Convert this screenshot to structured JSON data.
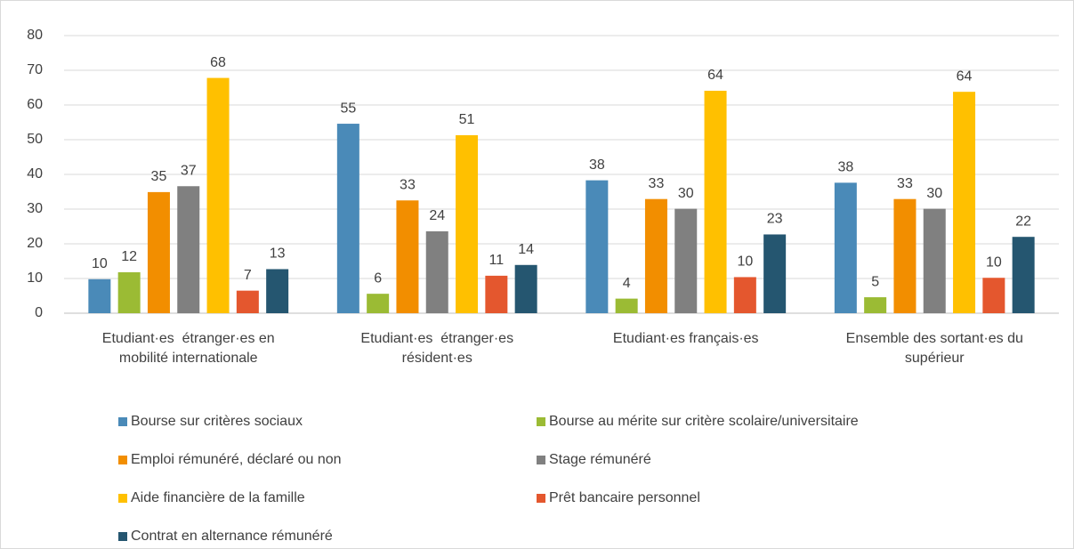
{
  "chart_data": {
    "type": "bar",
    "categories": [
      "Etudiant·es  étranger·es en mobilité internationale",
      "Etudiant·es  étranger·es résident·es",
      "Etudiant·es français·es",
      "Ensemble des sortant·es du supérieur"
    ],
    "series": [
      {
        "name": "Bourse sur critères sociaux",
        "color": "#4a8ab8",
        "values": [
          9.8,
          54.6,
          38.3,
          37.6
        ],
        "value_labels": [
          "10",
          "55",
          "38",
          "38"
        ]
      },
      {
        "name": "Bourse au mérite sur critère scolaire/universitaire",
        "color": "#9bbb34",
        "values": [
          11.8,
          5.6,
          4.2,
          4.6
        ],
        "value_labels": [
          "12",
          "6",
          "4",
          "5"
        ]
      },
      {
        "name": "Emploi rémunéré, déclaré ou non",
        "color": "#f28e00",
        "values": [
          34.9,
          32.5,
          32.9,
          32.9
        ],
        "value_labels": [
          "35",
          "33",
          "33",
          "33"
        ]
      },
      {
        "name": "Stage rémunéré",
        "color": "#808080",
        "values": [
          36.6,
          23.6,
          30.1,
          30.1
        ],
        "value_labels": [
          "37",
          "24",
          "30",
          "30"
        ]
      },
      {
        "name": "Aide financière de la famille",
        "color": "#ffc000",
        "values": [
          67.8,
          51.3,
          64.1,
          63.8
        ],
        "value_labels": [
          "68",
          "51",
          "64",
          "64"
        ]
      },
      {
        "name": "Prêt bancaire personnel",
        "color": "#e4572e",
        "values": [
          6.5,
          10.8,
          10.4,
          10.2
        ],
        "value_labels": [
          "7",
          "11",
          "10",
          "10"
        ]
      },
      {
        "name": "Contrat en alternance rémunéré",
        "color": "#255670",
        "values": [
          12.7,
          13.9,
          22.7,
          22.0
        ],
        "value_labels": [
          "13",
          "14",
          "23",
          "22"
        ]
      }
    ],
    "ylim": [
      0,
      80
    ],
    "yticks": [
      0,
      10,
      20,
      30,
      40,
      50,
      60,
      70,
      80
    ],
    "grid": true,
    "legend": "bottom"
  }
}
